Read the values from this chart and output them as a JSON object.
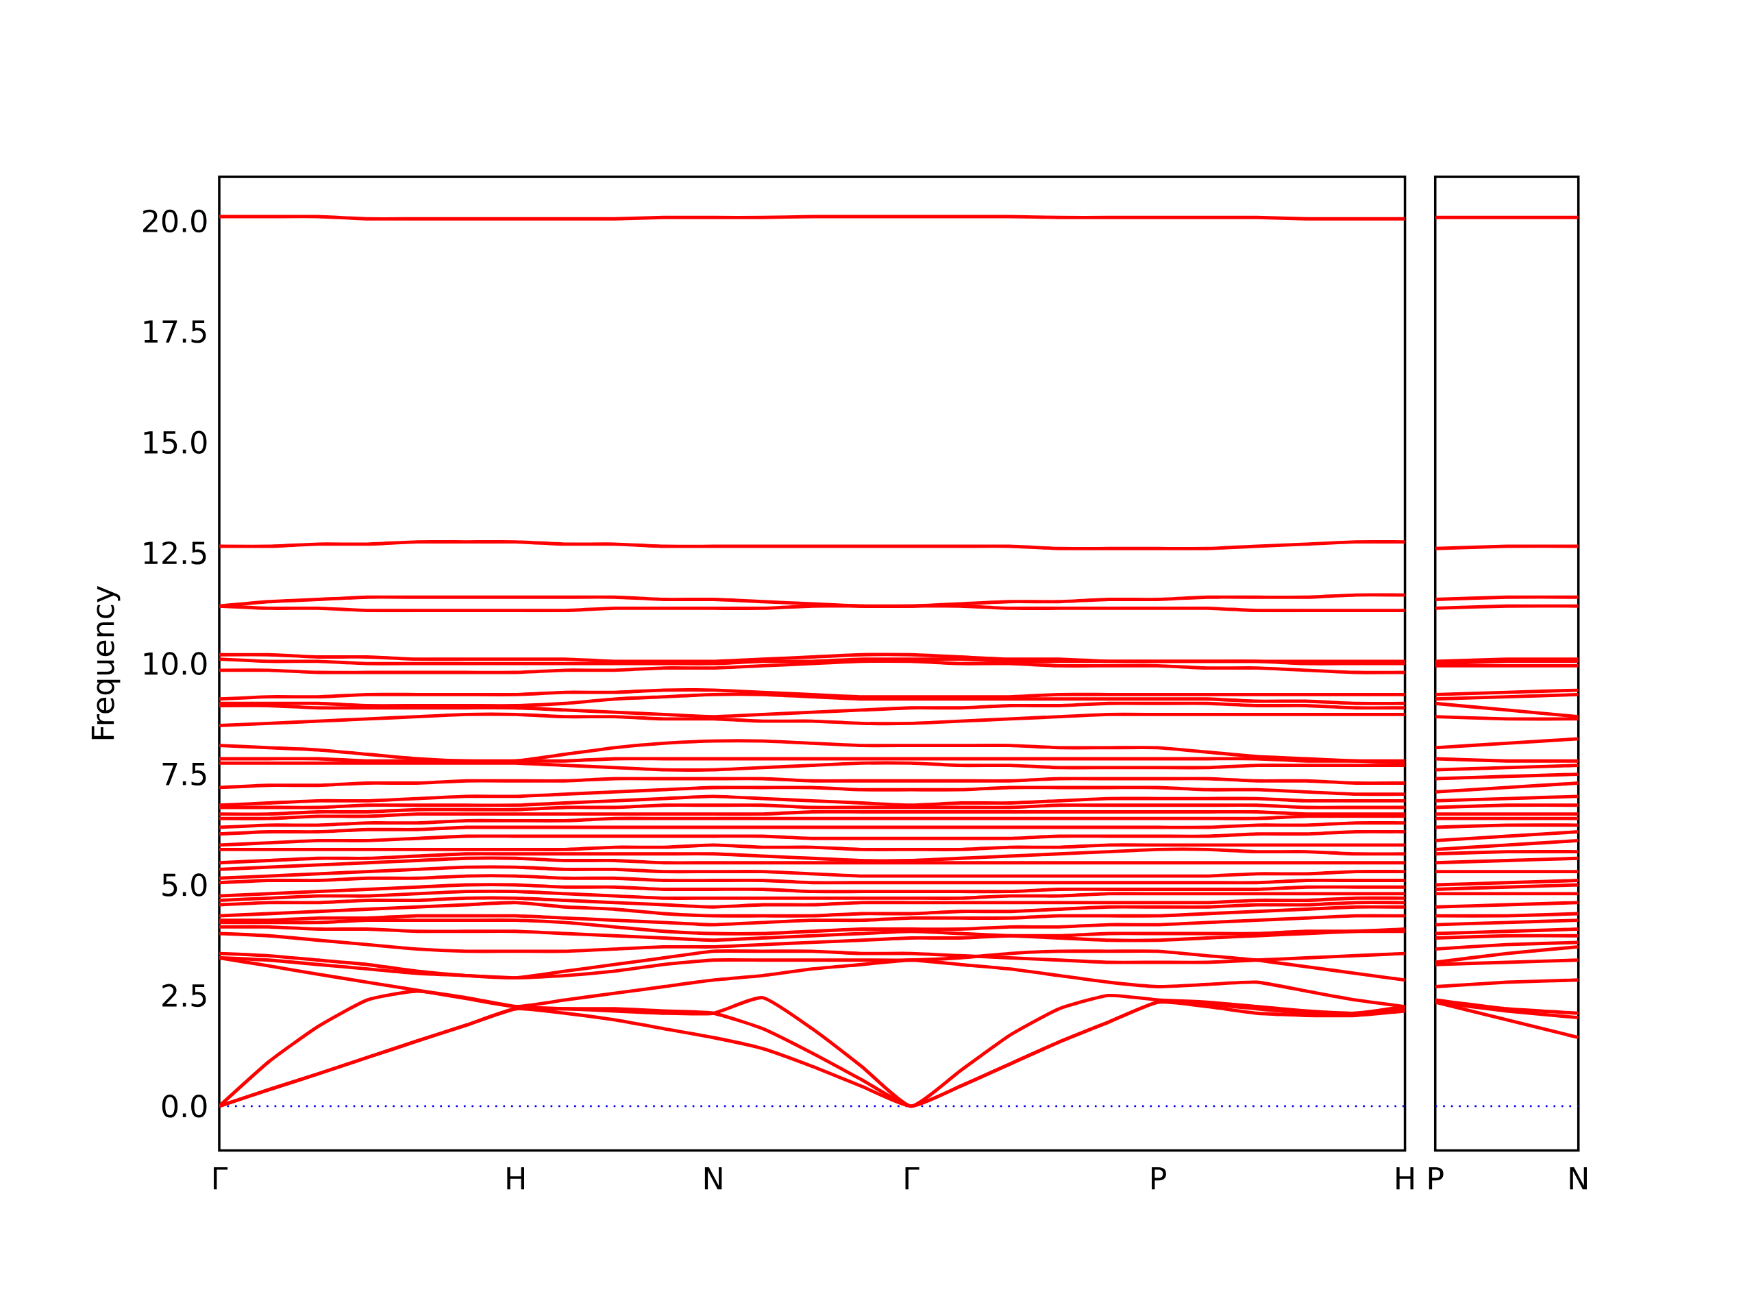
{
  "chart_data": [
    {
      "type": "line",
      "ylabel": "Frequency",
      "ylim": [
        -1,
        21
      ],
      "categories": [
        "Γ",
        null,
        null,
        null,
        null,
        null,
        "H",
        null,
        null,
        null,
        "N",
        null,
        null,
        null,
        "Γ",
        null,
        null,
        null,
        null,
        "P",
        null,
        null,
        null,
        null,
        "H"
      ],
      "yticks": [
        {
          "value": 0,
          "label": "0.0"
        },
        2.5,
        {
          "value": 5,
          "label": "5.0"
        },
        7.5,
        {
          "value": 10,
          "label": "10.0"
        },
        12.5,
        {
          "value": 15,
          "label": "15.0"
        },
        17.5,
        {
          "value": 20,
          "label": "20.0"
        }
      ],
      "ref_lines": [
        {
          "axis": "y",
          "value": 0,
          "color": "#0000ff",
          "line_style": "dotted"
        }
      ],
      "series": [
        {
          "color": "#ff0000",
          "values": [
            0,
            0.37,
            0.73,
            1.1,
            1.47,
            1.83,
            2.2,
            2.1,
            1.95,
            1.75,
            1.55,
            1.3,
            0.9,
            0.45,
            0,
            0.45,
            0.95,
            1.45,
            1.9,
            2.35,
            2.25,
            2.1,
            2.05,
            2.05,
            2.15
          ]
        },
        {
          "color": "#ff0000",
          "values": [
            0,
            1.0,
            1.8,
            2.4,
            2.6,
            2.45,
            2.25,
            2.2,
            2.15,
            2.1,
            2.1,
            2.45,
            1.75,
            0.9,
            0,
            0.8,
            1.6,
            2.2,
            2.5,
            2.4,
            2.35,
            2.25,
            2.15,
            2.1,
            2.25
          ]
        },
        {
          "color": "#ff0000",
          "values": [
            0,
            0.37,
            0.73,
            1.1,
            1.47,
            1.83,
            2.2,
            2.2,
            2.2,
            2.15,
            2.1,
            1.75,
            1.2,
            0.6,
            0,
            0.45,
            0.95,
            1.45,
            1.9,
            2.35,
            2.3,
            2.2,
            2.1,
            2.1,
            2.2
          ]
        },
        {
          "color": "#ff0000",
          "values": [
            3.35,
            3.17,
            2.98,
            2.8,
            2.62,
            2.43,
            2.25,
            2.4,
            2.55,
            2.7,
            2.85,
            2.95,
            3.1,
            3.2,
            3.3,
            3.2,
            3.1,
            2.95,
            2.8,
            2.7,
            2.75,
            2.8,
            2.6,
            2.4,
            2.25
          ]
        },
        {
          "color": "#ff0000",
          "values": [
            3.35,
            3.3,
            3.2,
            3.1,
            3.0,
            2.95,
            2.9,
            2.95,
            3.05,
            3.2,
            3.3,
            3.3,
            3.3,
            3.3,
            3.3,
            3.35,
            3.45,
            3.5,
            3.5,
            3.5,
            3.4,
            3.3,
            3.15,
            3.0,
            2.85
          ]
        },
        {
          "color": "#ff0000",
          "values": [
            3.45,
            3.4,
            3.3,
            3.2,
            3.05,
            2.95,
            2.9,
            3.05,
            3.2,
            3.35,
            3.5,
            3.5,
            3.5,
            3.45,
            3.45,
            3.4,
            3.35,
            3.3,
            3.25,
            3.25,
            3.25,
            3.3,
            3.35,
            3.4,
            3.45
          ]
        },
        {
          "color": "#ff0000",
          "values": [
            3.9,
            3.85,
            3.75,
            3.65,
            3.55,
            3.5,
            3.5,
            3.5,
            3.55,
            3.6,
            3.6,
            3.65,
            3.7,
            3.75,
            3.8,
            3.8,
            3.85,
            3.85,
            3.9,
            3.9,
            3.9,
            3.9,
            3.95,
            3.95,
            3.95
          ]
        },
        {
          "color": "#ff0000",
          "values": [
            4.05,
            4.05,
            4.0,
            4.0,
            3.95,
            3.95,
            3.95,
            3.9,
            3.85,
            3.8,
            3.75,
            3.8,
            3.85,
            3.9,
            3.95,
            3.9,
            3.85,
            3.8,
            3.75,
            3.75,
            3.8,
            3.85,
            3.9,
            3.95,
            4.0
          ]
        },
        {
          "color": "#ff0000",
          "values": [
            4.15,
            4.15,
            4.15,
            4.2,
            4.2,
            4.2,
            4.2,
            4.15,
            4.05,
            3.95,
            3.9,
            3.9,
            3.95,
            4.0,
            4.0,
            4.0,
            4.05,
            4.05,
            4.1,
            4.1,
            4.15,
            4.2,
            4.25,
            4.3,
            4.3
          ]
        },
        {
          "color": "#ff0000",
          "values": [
            4.2,
            4.2,
            4.25,
            4.25,
            4.3,
            4.3,
            4.3,
            4.25,
            4.2,
            4.15,
            4.1,
            4.15,
            4.2,
            4.2,
            4.25,
            4.25,
            4.25,
            4.3,
            4.3,
            4.3,
            4.35,
            4.4,
            4.45,
            4.5,
            4.5
          ]
        },
        {
          "color": "#ff0000",
          "values": [
            4.3,
            4.35,
            4.4,
            4.45,
            4.5,
            4.55,
            4.6,
            4.5,
            4.45,
            4.35,
            4.3,
            4.3,
            4.3,
            4.35,
            4.35,
            4.4,
            4.4,
            4.45,
            4.5,
            4.5,
            4.5,
            4.55,
            4.55,
            4.6,
            4.6
          ]
        },
        {
          "color": "#ff0000",
          "values": [
            4.55,
            4.6,
            4.6,
            4.65,
            4.65,
            4.7,
            4.7,
            4.65,
            4.6,
            4.55,
            4.5,
            4.55,
            4.55,
            4.6,
            4.6,
            4.6,
            4.6,
            4.6,
            4.6,
            4.6,
            4.6,
            4.65,
            4.65,
            4.7,
            4.7
          ]
        },
        {
          "color": "#ff0000",
          "values": [
            4.65,
            4.7,
            4.75,
            4.75,
            4.8,
            4.85,
            4.85,
            4.8,
            4.75,
            4.7,
            4.7,
            4.7,
            4.7,
            4.7,
            4.7,
            4.7,
            4.75,
            4.75,
            4.8,
            4.8,
            4.8,
            4.8,
            4.8,
            4.8,
            4.8
          ]
        },
        {
          "color": "#ff0000",
          "values": [
            4.75,
            4.8,
            4.85,
            4.9,
            4.95,
            5.0,
            5.0,
            4.95,
            4.95,
            4.9,
            4.9,
            4.9,
            4.85,
            4.85,
            4.85,
            4.85,
            4.85,
            4.9,
            4.9,
            4.9,
            4.9,
            4.9,
            4.95,
            4.95,
            4.95
          ]
        },
        {
          "color": "#ff0000",
          "values": [
            5.05,
            5.1,
            5.1,
            5.15,
            5.15,
            5.2,
            5.2,
            5.15,
            5.15,
            5.1,
            5.1,
            5.1,
            5.05,
            5.05,
            5.05,
            5.05,
            5.05,
            5.05,
            5.05,
            5.05,
            5.05,
            5.05,
            5.1,
            5.1,
            5.1
          ]
        },
        {
          "color": "#ff0000",
          "values": [
            5.15,
            5.2,
            5.25,
            5.3,
            5.35,
            5.4,
            5.4,
            5.35,
            5.35,
            5.3,
            5.3,
            5.3,
            5.25,
            5.2,
            5.2,
            5.2,
            5.2,
            5.2,
            5.2,
            5.2,
            5.2,
            5.25,
            5.25,
            5.3,
            5.3
          ]
        },
        {
          "color": "#ff0000",
          "values": [
            5.35,
            5.4,
            5.45,
            5.5,
            5.55,
            5.6,
            5.6,
            5.55,
            5.55,
            5.5,
            5.5,
            5.5,
            5.5,
            5.5,
            5.5,
            5.5,
            5.5,
            5.5,
            5.5,
            5.5,
            5.5,
            5.5,
            5.5,
            5.5,
            5.5
          ]
        },
        {
          "color": "#ff0000",
          "values": [
            5.5,
            5.55,
            5.6,
            5.6,
            5.65,
            5.7,
            5.7,
            5.7,
            5.7,
            5.7,
            5.7,
            5.65,
            5.6,
            5.55,
            5.55,
            5.6,
            5.65,
            5.7,
            5.75,
            5.8,
            5.8,
            5.75,
            5.75,
            5.7,
            5.7
          ]
        },
        {
          "color": "#ff0000",
          "values": [
            5.8,
            5.8,
            5.8,
            5.8,
            5.8,
            5.8,
            5.8,
            5.8,
            5.85,
            5.85,
            5.9,
            5.85,
            5.85,
            5.8,
            5.8,
            5.8,
            5.85,
            5.85,
            5.9,
            5.9,
            5.9,
            5.9,
            5.9,
            5.9,
            5.9
          ]
        },
        {
          "color": "#ff0000",
          "values": [
            5.9,
            5.95,
            6.0,
            6.0,
            6.05,
            6.1,
            6.1,
            6.1,
            6.1,
            6.1,
            6.1,
            6.1,
            6.05,
            6.05,
            6.05,
            6.05,
            6.05,
            6.1,
            6.1,
            6.1,
            6.1,
            6.15,
            6.15,
            6.2,
            6.2
          ]
        },
        {
          "color": "#ff0000",
          "values": [
            6.15,
            6.2,
            6.2,
            6.25,
            6.25,
            6.3,
            6.3,
            6.3,
            6.3,
            6.3,
            6.3,
            6.3,
            6.3,
            6.3,
            6.3,
            6.3,
            6.3,
            6.3,
            6.3,
            6.3,
            6.3,
            6.35,
            6.35,
            6.4,
            6.4
          ]
        },
        {
          "color": "#ff0000",
          "values": [
            6.3,
            6.35,
            6.35,
            6.4,
            6.4,
            6.45,
            6.45,
            6.45,
            6.5,
            6.5,
            6.5,
            6.5,
            6.5,
            6.5,
            6.5,
            6.5,
            6.5,
            6.5,
            6.5,
            6.5,
            6.5,
            6.5,
            6.55,
            6.55,
            6.55
          ]
        },
        {
          "color": "#ff0000",
          "values": [
            6.5,
            6.5,
            6.55,
            6.55,
            6.6,
            6.6,
            6.6,
            6.6,
            6.6,
            6.6,
            6.6,
            6.6,
            6.65,
            6.65,
            6.65,
            6.65,
            6.65,
            6.65,
            6.65,
            6.65,
            6.65,
            6.65,
            6.6,
            6.6,
            6.6
          ]
        },
        {
          "color": "#ff0000",
          "values": [
            6.6,
            6.6,
            6.65,
            6.65,
            6.7,
            6.7,
            6.7,
            6.75,
            6.75,
            6.8,
            6.8,
            6.8,
            6.75,
            6.75,
            6.75,
            6.75,
            6.75,
            6.8,
            6.8,
            6.8,
            6.8,
            6.8,
            6.75,
            6.75,
            6.75
          ]
        },
        {
          "color": "#ff0000",
          "values": [
            6.75,
            6.75,
            6.75,
            6.8,
            6.8,
            6.8,
            6.8,
            6.85,
            6.9,
            6.95,
            7.0,
            6.95,
            6.9,
            6.85,
            6.8,
            6.85,
            6.85,
            6.9,
            6.95,
            6.95,
            6.95,
            6.95,
            6.9,
            6.9,
            6.9
          ]
        },
        {
          "color": "#ff0000",
          "values": [
            6.8,
            6.85,
            6.9,
            6.9,
            6.95,
            7.0,
            7.0,
            7.05,
            7.1,
            7.15,
            7.2,
            7.2,
            7.2,
            7.15,
            7.15,
            7.15,
            7.2,
            7.2,
            7.2,
            7.2,
            7.15,
            7.15,
            7.1,
            7.05,
            7.05
          ]
        },
        {
          "color": "#ff0000",
          "values": [
            7.2,
            7.25,
            7.25,
            7.3,
            7.3,
            7.35,
            7.35,
            7.35,
            7.4,
            7.4,
            7.4,
            7.4,
            7.35,
            7.35,
            7.35,
            7.35,
            7.35,
            7.4,
            7.4,
            7.4,
            7.4,
            7.35,
            7.35,
            7.3,
            7.3
          ]
        },
        {
          "color": "#ff0000",
          "values": [
            7.75,
            7.75,
            7.75,
            7.75,
            7.75,
            7.75,
            7.75,
            7.7,
            7.65,
            7.6,
            7.6,
            7.65,
            7.7,
            7.75,
            7.75,
            7.7,
            7.7,
            7.65,
            7.65,
            7.65,
            7.65,
            7.7,
            7.7,
            7.7,
            7.7
          ]
        },
        {
          "color": "#ff0000",
          "values": [
            7.85,
            7.85,
            7.85,
            7.8,
            7.8,
            7.8,
            7.8,
            7.8,
            7.85,
            7.85,
            7.85,
            7.85,
            7.85,
            7.85,
            7.85,
            7.85,
            7.85,
            7.85,
            7.85,
            7.85,
            7.85,
            7.85,
            7.8,
            7.8,
            7.8
          ]
        },
        {
          "color": "#ff0000",
          "values": [
            8.15,
            8.1,
            8.05,
            7.95,
            7.85,
            7.8,
            7.8,
            7.95,
            8.1,
            8.2,
            8.25,
            8.25,
            8.2,
            8.15,
            8.15,
            8.15,
            8.15,
            8.1,
            8.1,
            8.1,
            8.0,
            7.9,
            7.85,
            7.8,
            7.75
          ]
        },
        {
          "color": "#ff0000",
          "values": [
            8.6,
            8.65,
            8.7,
            8.75,
            8.8,
            8.85,
            8.85,
            8.8,
            8.8,
            8.75,
            8.75,
            8.7,
            8.7,
            8.65,
            8.65,
            8.7,
            8.75,
            8.8,
            8.85,
            8.85,
            8.85,
            8.85,
            8.85,
            8.85,
            8.85
          ]
        },
        {
          "color": "#ff0000",
          "values": [
            9.05,
            9.05,
            9.0,
            9.0,
            9.0,
            9.0,
            9.0,
            8.95,
            8.9,
            8.85,
            8.8,
            8.85,
            8.9,
            8.95,
            9.0,
            9.0,
            9.05,
            9.05,
            9.1,
            9.1,
            9.1,
            9.05,
            9.05,
            9.0,
            9.0
          ]
        },
        {
          "color": "#ff0000",
          "values": [
            9.1,
            9.1,
            9.1,
            9.05,
            9.05,
            9.05,
            9.05,
            9.1,
            9.2,
            9.25,
            9.3,
            9.3,
            9.25,
            9.2,
            9.2,
            9.2,
            9.2,
            9.2,
            9.2,
            9.2,
            9.2,
            9.15,
            9.15,
            9.1,
            9.1
          ]
        },
        {
          "color": "#ff0000",
          "values": [
            9.2,
            9.25,
            9.25,
            9.3,
            9.3,
            9.3,
            9.3,
            9.35,
            9.35,
            9.4,
            9.4,
            9.35,
            9.3,
            9.25,
            9.25,
            9.25,
            9.25,
            9.3,
            9.3,
            9.3,
            9.3,
            9.3,
            9.3,
            9.3,
            9.3
          ]
        },
        {
          "color": "#ff0000",
          "values": [
            9.85,
            9.85,
            9.8,
            9.8,
            9.8,
            9.8,
            9.8,
            9.85,
            9.85,
            9.9,
            9.9,
            9.95,
            10.0,
            10.05,
            10.05,
            10.0,
            10.0,
            9.95,
            9.95,
            9.95,
            9.9,
            9.9,
            9.85,
            9.8,
            9.8
          ]
        },
        {
          "color": "#ff0000",
          "values": [
            10.1,
            10.05,
            10.05,
            10.0,
            10.0,
            10.0,
            10.0,
            10.0,
            10.0,
            10.0,
            10.0,
            10.05,
            10.05,
            10.1,
            10.1,
            10.1,
            10.05,
            10.05,
            10.05,
            10.05,
            10.05,
            10.05,
            10.0,
            10.0,
            10.0
          ]
        },
        {
          "color": "#ff0000",
          "values": [
            10.2,
            10.2,
            10.15,
            10.15,
            10.1,
            10.1,
            10.1,
            10.1,
            10.05,
            10.05,
            10.05,
            10.1,
            10.15,
            10.2,
            10.2,
            10.15,
            10.1,
            10.1,
            10.05,
            10.05,
            10.05,
            10.05,
            10.05,
            10.05,
            10.05
          ]
        },
        {
          "color": "#ff0000",
          "values": [
            11.3,
            11.25,
            11.25,
            11.2,
            11.2,
            11.2,
            11.2,
            11.2,
            11.25,
            11.25,
            11.25,
            11.25,
            11.3,
            11.3,
            11.3,
            11.3,
            11.25,
            11.25,
            11.25,
            11.25,
            11.25,
            11.2,
            11.2,
            11.2,
            11.2
          ]
        },
        {
          "color": "#ff0000",
          "values": [
            11.3,
            11.4,
            11.45,
            11.5,
            11.5,
            11.5,
            11.5,
            11.5,
            11.5,
            11.45,
            11.45,
            11.4,
            11.35,
            11.3,
            11.3,
            11.35,
            11.4,
            11.4,
            11.45,
            11.45,
            11.5,
            11.5,
            11.5,
            11.55,
            11.55
          ]
        },
        {
          "color": "#ff0000",
          "values": [
            12.65,
            12.65,
            12.7,
            12.7,
            12.75,
            12.75,
            12.75,
            12.7,
            12.7,
            12.65,
            12.65,
            12.65,
            12.65,
            12.65,
            12.65,
            12.65,
            12.65,
            12.6,
            12.6,
            12.6,
            12.6,
            12.65,
            12.7,
            12.75,
            12.75
          ]
        },
        {
          "color": "#ff0000",
          "values": [
            20.1,
            20.1,
            20.1,
            20.05,
            20.05,
            20.05,
            20.05,
            20.05,
            20.05,
            20.08,
            20.08,
            20.08,
            20.1,
            20.1,
            20.1,
            20.1,
            20.1,
            20.08,
            20.08,
            20.08,
            20.08,
            20.08,
            20.05,
            20.05,
            20.05
          ]
        }
      ]
    },
    {
      "type": "line",
      "ylim": [
        -1,
        21
      ],
      "tick_labels": "x",
      "categories": [
        "P",
        null,
        "N"
      ],
      "yticks": [
        0,
        2.5,
        5,
        7.5,
        10,
        12.5,
        15,
        17.5,
        20
      ],
      "ref_lines": [
        {
          "axis": "y",
          "value": 0,
          "color": "#0000ff",
          "line_style": "dotted"
        }
      ],
      "series": [
        {
          "color": "#ff0000",
          "values": [
            2.35,
            1.95,
            1.55
          ]
        },
        {
          "color": "#ff0000",
          "values": [
            2.4,
            2.2,
            2.1
          ]
        },
        {
          "color": "#ff0000",
          "values": [
            2.35,
            2.15,
            2.0
          ]
        },
        {
          "color": "#ff0000",
          "values": [
            2.7,
            2.8,
            2.85
          ]
        },
        {
          "color": "#ff0000",
          "values": [
            3.2,
            3.25,
            3.3
          ]
        },
        {
          "color": "#ff0000",
          "values": [
            3.25,
            3.45,
            3.6
          ]
        },
        {
          "color": "#ff0000",
          "values": [
            3.55,
            3.65,
            3.7
          ]
        },
        {
          "color": "#ff0000",
          "values": [
            3.8,
            3.85,
            3.85
          ]
        },
        {
          "color": "#ff0000",
          "values": [
            3.9,
            3.95,
            4.0
          ]
        },
        {
          "color": "#ff0000",
          "values": [
            4.1,
            4.15,
            4.2
          ]
        },
        {
          "color": "#ff0000",
          "values": [
            4.3,
            4.3,
            4.35
          ]
        },
        {
          "color": "#ff0000",
          "values": [
            4.5,
            4.55,
            4.6
          ]
        },
        {
          "color": "#ff0000",
          "values": [
            4.8,
            4.8,
            4.8
          ]
        },
        {
          "color": "#ff0000",
          "values": [
            4.9,
            4.95,
            5.0
          ]
        },
        {
          "color": "#ff0000",
          "values": [
            5.0,
            5.05,
            5.1
          ]
        },
        {
          "color": "#ff0000",
          "values": [
            5.3,
            5.3,
            5.3
          ]
        },
        {
          "color": "#ff0000",
          "values": [
            5.5,
            5.55,
            5.6
          ]
        },
        {
          "color": "#ff0000",
          "values": [
            5.7,
            5.75,
            5.75
          ]
        },
        {
          "color": "#ff0000",
          "values": [
            5.8,
            5.9,
            6.0
          ]
        },
        {
          "color": "#ff0000",
          "values": [
            6.0,
            6.1,
            6.2
          ]
        },
        {
          "color": "#ff0000",
          "values": [
            6.3,
            6.35,
            6.35
          ]
        },
        {
          "color": "#ff0000",
          "values": [
            6.5,
            6.5,
            6.5
          ]
        },
        {
          "color": "#ff0000",
          "values": [
            6.6,
            6.6,
            6.6
          ]
        },
        {
          "color": "#ff0000",
          "values": [
            6.75,
            6.8,
            6.8
          ]
        },
        {
          "color": "#ff0000",
          "values": [
            6.9,
            6.95,
            7.0
          ]
        },
        {
          "color": "#ff0000",
          "values": [
            7.1,
            7.2,
            7.3
          ]
        },
        {
          "color": "#ff0000",
          "values": [
            7.4,
            7.45,
            7.5
          ]
        },
        {
          "color": "#ff0000",
          "values": [
            7.6,
            7.65,
            7.7
          ]
        },
        {
          "color": "#ff0000",
          "values": [
            7.85,
            7.8,
            7.8
          ]
        },
        {
          "color": "#ff0000",
          "values": [
            8.1,
            8.2,
            8.3
          ]
        },
        {
          "color": "#ff0000",
          "values": [
            8.8,
            8.75,
            8.75
          ]
        },
        {
          "color": "#ff0000",
          "values": [
            9.1,
            8.95,
            8.8
          ]
        },
        {
          "color": "#ff0000",
          "values": [
            9.2,
            9.25,
            9.3
          ]
        },
        {
          "color": "#ff0000",
          "values": [
            9.3,
            9.35,
            9.4
          ]
        },
        {
          "color": "#ff0000",
          "values": [
            9.95,
            9.95,
            9.95
          ]
        },
        {
          "color": "#ff0000",
          "values": [
            10.0,
            10.05,
            10.05
          ]
        },
        {
          "color": "#ff0000",
          "values": [
            10.05,
            10.1,
            10.1
          ]
        },
        {
          "color": "#ff0000",
          "values": [
            11.25,
            11.3,
            11.3
          ]
        },
        {
          "color": "#ff0000",
          "values": [
            11.45,
            11.5,
            11.5
          ]
        },
        {
          "color": "#ff0000",
          "values": [
            12.6,
            12.65,
            12.65
          ]
        },
        {
          "color": "#ff0000",
          "values": [
            20.08,
            20.08,
            20.08
          ]
        }
      ]
    }
  ]
}
